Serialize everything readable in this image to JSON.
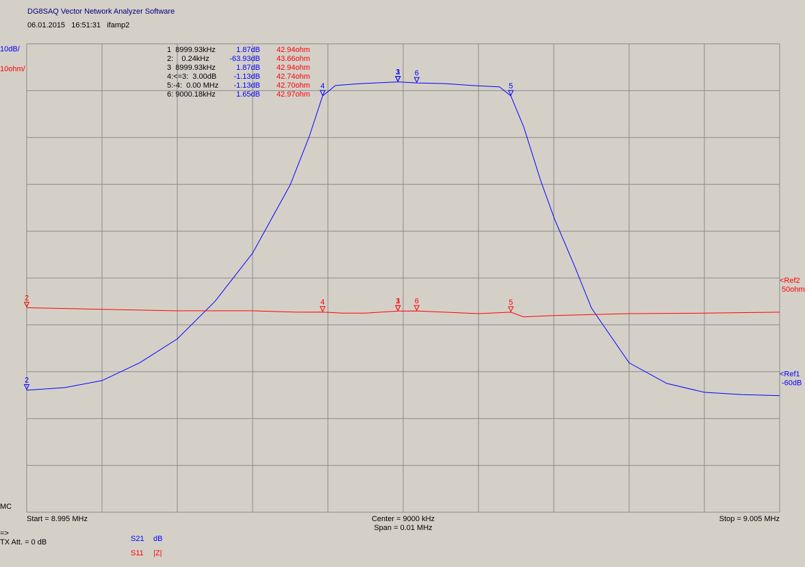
{
  "chart_data": {
    "type": "line",
    "title": "DG8SAQ Vector Network Analyzer Software",
    "subtitle": "06.01.2015   16:51:31   ifamp2",
    "xlim": [
      8995,
      9005
    ],
    "xticks": [
      8995,
      8996,
      8997,
      8998,
      8999,
      9000,
      9001,
      9002,
      9003,
      9004,
      9005
    ],
    "ylim": [
      -90,
      10
    ],
    "yticks": [
      -90,
      -80,
      -70,
      -60,
      -50,
      -40,
      -30,
      -20,
      -10,
      0,
      10
    ],
    "y2lim": [
      0,
      100
    ],
    "grid": true,
    "scale_labels": [
      {
        "text": "10dB/",
        "color": "#0000ff"
      },
      {
        "text": "10ohm/",
        "color": "#ff0000"
      }
    ],
    "ref_labels": [
      {
        "name": "<Ref2",
        "value": "50ohm",
        "color": "#ff0000",
        "axis": "y2",
        "level": 50
      },
      {
        "name": "<Ref1",
        "value": "-60dB",
        "color": "#0000ff",
        "axis": "y",
        "level": -60
      }
    ],
    "series": [
      {
        "name": "S21",
        "unit": "dB",
        "color": "#0000ff",
        "axis": "y",
        "x": [
          8995,
          8995.5,
          8996,
          8996.5,
          8997,
          8997.5,
          8998,
          8998.5,
          8998.75,
          8998.93,
          8999.1,
          8999.43,
          8999.93,
          9000.18,
          9000.56,
          9000.92,
          9001.28,
          9001.43,
          9001.6,
          9001.83,
          9002.01,
          9002.28,
          9002.5,
          9003,
          9003.5,
          9004,
          9004.5,
          9005
        ],
        "values": [
          -63.93,
          -63.4,
          -61.9,
          -58.1,
          -53.0,
          -45.0,
          -34.7,
          -20.1,
          -9.9,
          -1.13,
          1.1,
          1.5,
          1.87,
          1.65,
          1.5,
          1.1,
          0.8,
          -1.13,
          -7.7,
          -19.4,
          -27.4,
          -37.6,
          -46.4,
          -58.1,
          -62.5,
          -64.4,
          -64.9,
          -65.1
        ]
      },
      {
        "name": "S11",
        "unit": "|Z|",
        "color": "#ff0000",
        "axis": "y2",
        "x": [
          8995,
          8997,
          8998,
          8998.6,
          8998.93,
          8999.2,
          8999.5,
          8999.93,
          9000.18,
          9001,
          9001.43,
          9001.6,
          9002,
          9003,
          9004,
          9005
        ],
        "values": [
          43.66,
          43.0,
          43.0,
          42.7,
          42.74,
          42.5,
          42.5,
          42.94,
          42.97,
          42.4,
          42.7,
          41.7,
          42.0,
          42.4,
          42.5,
          42.7
        ]
      }
    ],
    "markers": [
      {
        "label": "1",
        "x": 8999.93,
        "s21": 1.87,
        "z": 42.94
      },
      {
        "label": "2",
        "x": 8995,
        "s21": -63.93,
        "z": 43.66
      },
      {
        "label": "3",
        "x": 8999.93,
        "s21": 1.87,
        "z": 42.94
      },
      {
        "label": "4",
        "x": 8998.93,
        "s21": -1.13,
        "z": 42.74
      },
      {
        "label": "5",
        "x": 9001.43,
        "s21": -1.13,
        "z": 42.7
      },
      {
        "label": "6",
        "x": 9000.18,
        "s21": 1.65,
        "z": 42.97
      }
    ],
    "marker_table": [
      [
        "1  8999.93kHz",
        "1.87dB",
        "42.94ohm"
      ],
      [
        "2:    0.24kHz",
        "-63.93dB",
        "43.66ohm"
      ],
      [
        "3  8999.93kHz",
        "1.87dB",
        "42.94ohm"
      ],
      [
        "4:<=3:  3.00dB",
        "-1.13dB",
        "42.74ohm"
      ],
      [
        "5:-4:  0.00 MHz",
        "-1.13dB",
        "42.70ohm"
      ],
      [
        "6: 9000.18kHz",
        "1.65dB",
        "42.97ohm"
      ]
    ],
    "footer": {
      "mode": "MC",
      "start": "Start = 8.995 MHz",
      "center": "Center = 9000 kHz",
      "span": "Span = 0.01 MHz",
      "stop": "Stop = 9.005 MHz",
      "arrow": "=>",
      "tx_att": "TX Att. = 0 dB"
    }
  }
}
